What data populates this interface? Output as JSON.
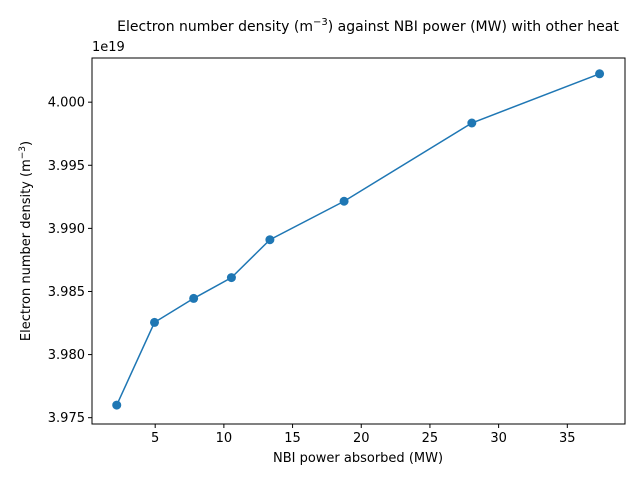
{
  "chart_data": {
    "type": "line",
    "title_prefix": "Electron number density (m",
    "title_exp": "−3",
    "title_suffix": ") against NBI power (MW) with other heat",
    "xlabel": "NBI power absorbed (MW)",
    "ylabel_prefix": "Electron number density (m",
    "ylabel_exp": "−3",
    "ylabel_suffix": ")",
    "y_offset_label": "1e19",
    "xlim": [
      0.4,
      39.2
    ],
    "ylim": [
      3.9745,
      4.0035
    ],
    "x_ticks": [
      5,
      10,
      15,
      20,
      25,
      30,
      35
    ],
    "x_tick_labels": [
      "5",
      "10",
      "15",
      "20",
      "25",
      "30",
      "35"
    ],
    "y_ticks": [
      3.975,
      3.98,
      3.985,
      3.99,
      3.995,
      4.0
    ],
    "y_tick_labels": [
      "3.975",
      "3.980",
      "3.985",
      "3.990",
      "3.995",
      "4.000"
    ],
    "grid": false,
    "series": [
      {
        "color": "#1f77b4",
        "marker": "circle",
        "x": [
          2.2,
          4.95,
          7.8,
          10.55,
          13.35,
          18.75,
          28.05,
          37.35
        ],
        "y": [
          3.976,
          3.98255,
          3.98445,
          3.9861,
          3.9891,
          3.99215,
          3.99835,
          4.00225
        ]
      }
    ]
  }
}
